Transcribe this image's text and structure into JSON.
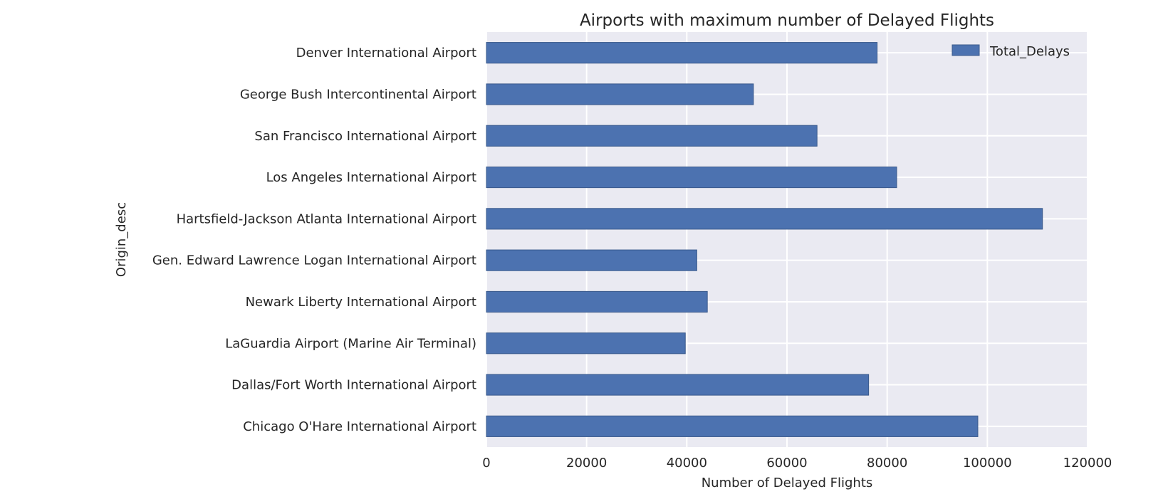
{
  "chart_data": {
    "type": "bar",
    "orientation": "horizontal",
    "title": "Airports with maximum number of Delayed Flights",
    "xlabel": "Number of Delayed Flights",
    "ylabel": "Origin_desc",
    "xlim": [
      0,
      120000
    ],
    "xticks": [
      0,
      20000,
      40000,
      60000,
      80000,
      100000,
      120000
    ],
    "grid": true,
    "legend_position": "top-right",
    "categories": [
      "Denver International Airport",
      "George Bush Intercontinental Airport",
      "San Francisco International Airport",
      "Los Angeles International Airport",
      "Hartsfield-Jackson Atlanta International Airport",
      "Gen. Edward Lawrence Logan International Airport",
      "Newark Liberty International Airport",
      "LaGuardia Airport (Marine Air Terminal)",
      "Dallas/Fort Worth International Airport",
      "Chicago O'Hare International Airport"
    ],
    "series": [
      {
        "name": "Total_Delays",
        "color": "#4c72b0",
        "values": [
          78000,
          53300,
          66000,
          81900,
          111000,
          42000,
          44100,
          39700,
          76300,
          98100
        ]
      }
    ]
  },
  "style": {
    "plot_background": "#eaeaf2",
    "grid_color": "#ffffff",
    "bar_color": "#4c72b0",
    "bar_edge": "#3a5a8c"
  }
}
